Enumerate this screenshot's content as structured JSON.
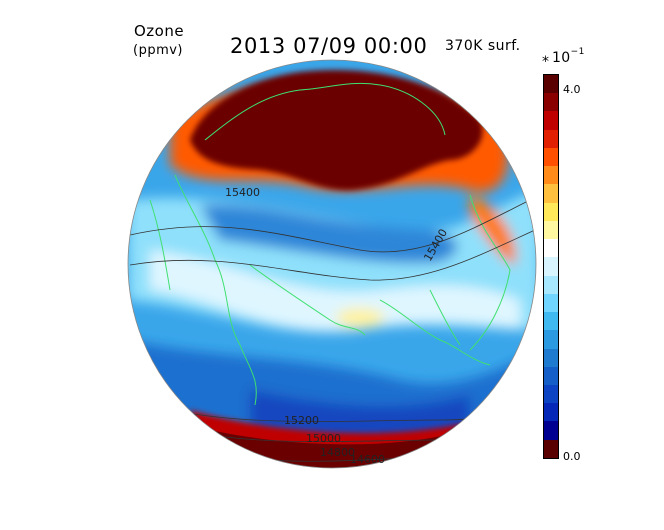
{
  "title": {
    "variable": "Ozone",
    "unit": "(ppmv)",
    "datetime": "2013 07/09 00:00",
    "level": "370K surf."
  },
  "colorbar": {
    "scale_star": "*",
    "scale_base": "10",
    "scale_exponent": "−1",
    "max_label": "4.0",
    "min_label": "0.0",
    "colors_top_to_bottom": [
      "#5a0000",
      "#8a0000",
      "#c00000",
      "#e02000",
      "#ff5000",
      "#ff8c1a",
      "#ffc040",
      "#ffe85a",
      "#fff8a0",
      "#ffffff",
      "#d8f4ff",
      "#a8e8ff",
      "#70d6ff",
      "#40b8f0",
      "#2c9ae0",
      "#1f7bd0",
      "#1560c8",
      "#0c44c4",
      "#0628b8",
      "#000090",
      "#5a0000"
    ]
  },
  "map": {
    "projection": "orthographic",
    "contour_labels": [
      "15400",
      "15400",
      "15200",
      "15000",
      "14800",
      "14600"
    ]
  }
}
